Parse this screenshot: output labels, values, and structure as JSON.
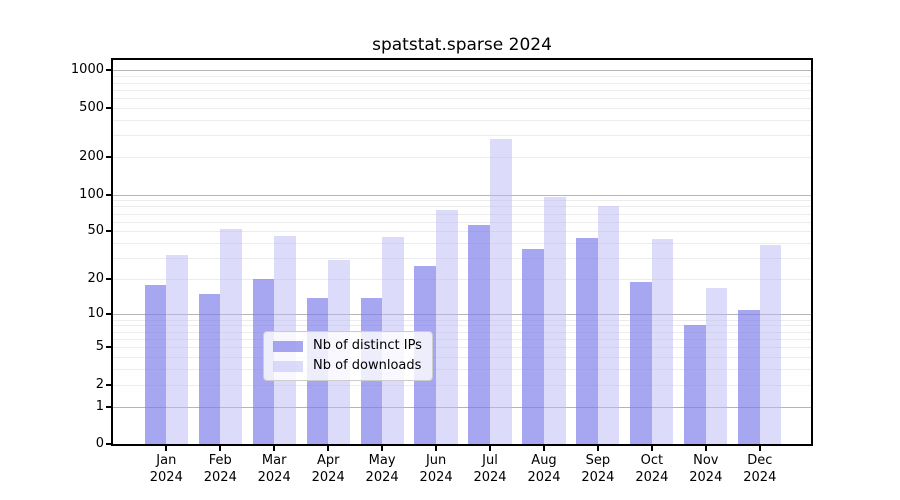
{
  "title": "spatstat.sparse 2024",
  "chart_data": {
    "type": "bar",
    "title": "spatstat.sparse 2024",
    "categories": [
      "Jan",
      "Feb",
      "Mar",
      "Apr",
      "May",
      "Jun",
      "Jul",
      "Aug",
      "Sep",
      "Oct",
      "Nov",
      "Dec"
    ],
    "category_year": "2024",
    "series": [
      {
        "name": "Nb of distinct IPs",
        "color": "rgba(124,124,235,0.68)",
        "values": [
          18,
          15,
          20,
          14,
          14,
          26,
          56,
          36,
          44,
          19,
          8,
          11
        ]
      },
      {
        "name": "Nb of downloads",
        "color": "rgba(185,185,246,0.5)",
        "values": [
          32,
          52,
          46,
          29,
          45,
          75,
          280,
          96,
          81,
          43,
          17,
          39
        ]
      }
    ],
    "y_scale": "log10(value+1), 0 at baseline",
    "y_tick_labels": [
      0,
      1,
      2,
      5,
      10,
      20,
      50,
      100,
      200,
      500,
      1000
    ],
    "y_major_gridlines": [
      1,
      10,
      100,
      1000
    ],
    "ylim": [
      0,
      1215
    ],
    "grid": true,
    "legend_position": "inside lower-center",
    "colors": {
      "major_grid": "#b5b5b5",
      "minor_grid": "#ececec",
      "spine": "#000000",
      "background": "#ffffff"
    }
  }
}
